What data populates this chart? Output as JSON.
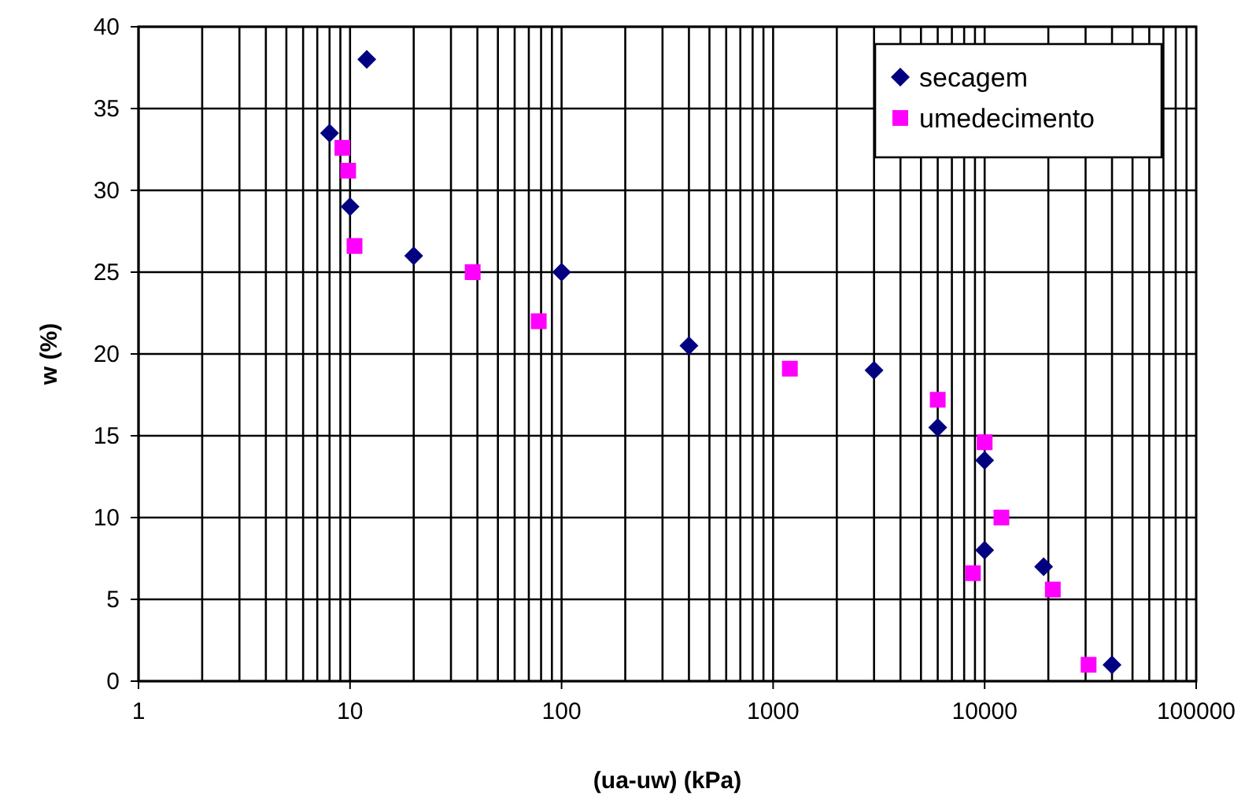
{
  "chart_data": {
    "type": "scatter",
    "xlabel": "(ua-uw) (kPa)",
    "ylabel": "w (%)",
    "log": "x",
    "xlim": [
      1,
      100000
    ],
    "xticks": [
      1,
      10,
      100,
      1000,
      10000,
      100000
    ],
    "ylim": [
      0,
      40
    ],
    "yticks": [
      0,
      5,
      10,
      15,
      20,
      25,
      30,
      35,
      40
    ],
    "grid": true,
    "legend": "top right",
    "series": [
      {
        "name": "secagem",
        "color": "#000080",
        "marker": "diamond",
        "x": [
          12,
          8,
          10,
          20,
          100,
          400,
          3000,
          6000,
          10000,
          10000,
          19000,
          40000
        ],
        "values": [
          38,
          33.5,
          29,
          26,
          25,
          20.5,
          19,
          15.5,
          13.5,
          8,
          7,
          1
        ]
      },
      {
        "name": "umedecimento",
        "color": "#ff00ff",
        "marker": "square",
        "x": [
          9.2,
          9.8,
          10.5,
          38,
          78,
          1200,
          6000,
          10000,
          12000,
          8800,
          21000,
          31000
        ],
        "values": [
          32.6,
          31.2,
          26.6,
          25,
          22,
          19.1,
          17.2,
          14.6,
          10,
          6.6,
          5.6,
          1
        ]
      }
    ]
  }
}
